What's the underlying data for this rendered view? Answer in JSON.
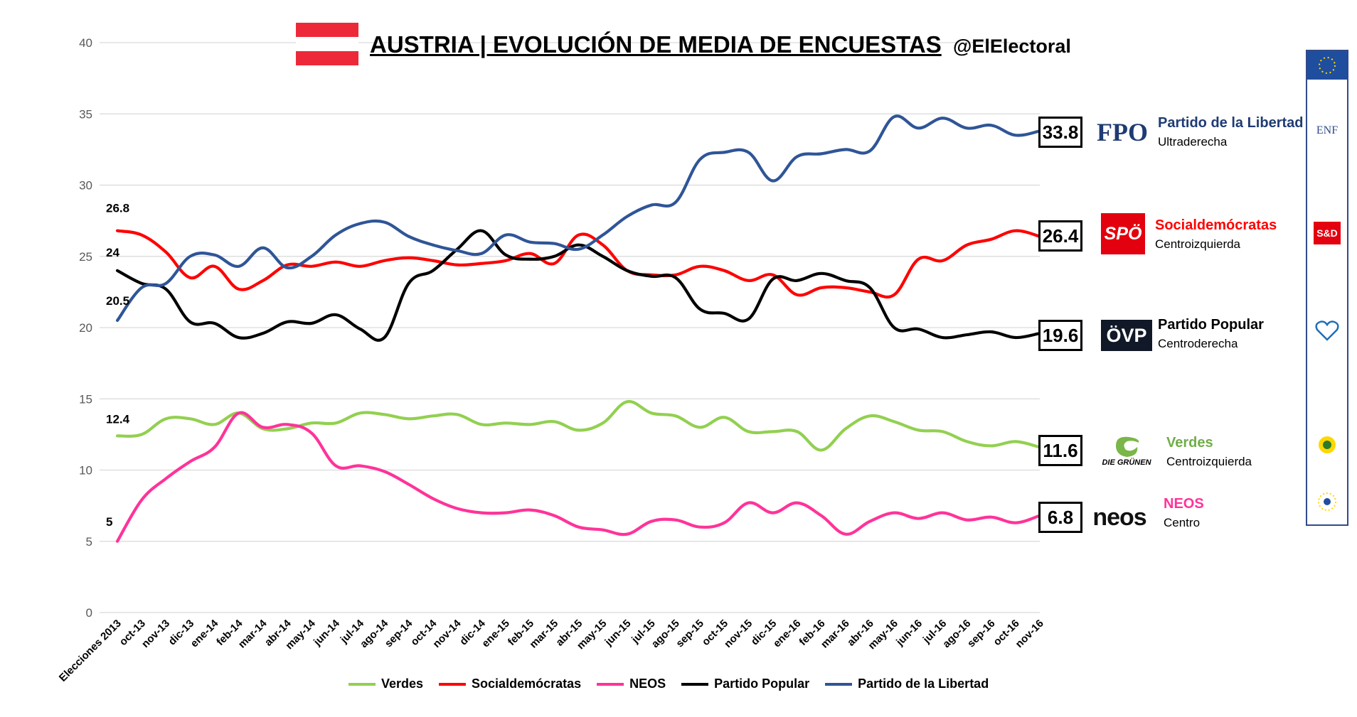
{
  "header": {
    "title": "AUSTRIA | EVOLUCIÓN DE MEDIA DE ENCUESTAS",
    "handle": "@ElElectoral",
    "flag_colors": [
      "#ED2939",
      "#FFFFFF",
      "#ED2939"
    ]
  },
  "chart_data": {
    "type": "line",
    "ylim": [
      0,
      40
    ],
    "yticks": [
      "0",
      "5",
      "10",
      "15",
      "20",
      "25",
      "30",
      "35",
      "40"
    ],
    "categories": [
      "Elecciones 2013",
      "oct-13",
      "nov-13",
      "dic-13",
      "ene-14",
      "feb-14",
      "mar-14",
      "abr-14",
      "may-14",
      "jun-14",
      "jul-14",
      "ago-14",
      "sep-14",
      "oct-14",
      "nov-14",
      "dic-14",
      "ene-15",
      "feb-15",
      "mar-15",
      "abr-15",
      "may-15",
      "jun-15",
      "jul-15",
      "ago-15",
      "sep-15",
      "oct-15",
      "nov-15",
      "dic-15",
      "ene-16",
      "feb-16",
      "mar-16",
      "abr-16",
      "may-16",
      "jun-16",
      "jul-16",
      "ago-16",
      "sep-16",
      "oct-16",
      "nov-16"
    ],
    "grid": true,
    "legend_position": "bottom",
    "series": [
      {
        "name": "Verdes",
        "color": "#92D050",
        "start_label": "12.4",
        "values": [
          12.4,
          12.5,
          13.6,
          13.6,
          13.2,
          14.0,
          12.9,
          12.9,
          13.3,
          13.3,
          14.0,
          13.9,
          13.6,
          13.8,
          13.9,
          13.2,
          13.3,
          13.2,
          13.4,
          12.8,
          13.3,
          14.8,
          14.0,
          13.8,
          13.0,
          13.7,
          12.7,
          12.7,
          12.7,
          11.4,
          12.9,
          13.8,
          13.4,
          12.8,
          12.7,
          12.0,
          11.7,
          12.0,
          11.6
        ]
      },
      {
        "name": "Socialdemócratas",
        "color": "#FF0000",
        "start_label": "26.8",
        "values": [
          26.8,
          26.5,
          25.3,
          23.5,
          24.3,
          22.7,
          23.3,
          24.4,
          24.3,
          24.6,
          24.3,
          24.7,
          24.9,
          24.7,
          24.4,
          24.5,
          24.7,
          25.2,
          24.5,
          26.5,
          25.8,
          24.0,
          23.7,
          23.7,
          24.3,
          24.0,
          23.3,
          23.7,
          22.3,
          22.8,
          22.8,
          22.5,
          22.3,
          24.8,
          24.7,
          25.8,
          26.2,
          26.8,
          26.4
        ]
      },
      {
        "name": "NEOS",
        "color": "#FF3399",
        "start_label": "5",
        "values": [
          5.0,
          7.9,
          9.4,
          10.6,
          11.6,
          14.0,
          13.0,
          13.2,
          12.6,
          10.3,
          10.3,
          9.9,
          9.0,
          8.0,
          7.3,
          7.0,
          7.0,
          7.2,
          6.8,
          6.0,
          5.8,
          5.5,
          6.4,
          6.5,
          6.0,
          6.3,
          7.7,
          7.0,
          7.7,
          6.8,
          5.5,
          6.4,
          7.0,
          6.6,
          7.0,
          6.5,
          6.7,
          6.3,
          6.8
        ]
      },
      {
        "name": "Partido Popular",
        "color": "#000000",
        "start_label": "24",
        "values": [
          24.0,
          23.1,
          22.7,
          20.4,
          20.3,
          19.3,
          19.6,
          20.4,
          20.3,
          20.9,
          19.9,
          19.3,
          23.1,
          24.0,
          25.5,
          26.8,
          25.1,
          24.8,
          25.0,
          25.8,
          25.0,
          24.0,
          23.6,
          23.5,
          21.3,
          21.0,
          20.6,
          23.4,
          23.3,
          23.8,
          23.3,
          22.8,
          20.0,
          19.9,
          19.3,
          19.5,
          19.7,
          19.3,
          19.6
        ]
      },
      {
        "name": "Partido de la Libertad",
        "color": "#2F5597",
        "start_label": "20.5",
        "values": [
          20.5,
          22.8,
          23.1,
          25.0,
          25.1,
          24.3,
          25.6,
          24.2,
          25.0,
          26.5,
          27.3,
          27.4,
          26.4,
          25.8,
          25.4,
          25.2,
          26.5,
          26.0,
          25.9,
          25.5,
          26.5,
          27.8,
          28.6,
          28.8,
          31.8,
          32.3,
          32.3,
          30.3,
          32.0,
          32.2,
          32.5,
          32.4,
          34.8,
          34.0,
          34.7,
          34.0,
          34.2,
          33.5,
          33.8
        ]
      }
    ]
  },
  "sidebar": [
    {
      "key": "fpo",
      "value": "33.8",
      "logo_text": "FPO",
      "name": "Partido de la Libertad",
      "sub": "Ultraderecha",
      "name_color": "#1F3B73"
    },
    {
      "key": "spo",
      "value": "26.4",
      "logo_text": "SPÖ",
      "name": "Socialdemócratas",
      "sub": "Centroizquierda",
      "name_color": "#FF0000"
    },
    {
      "key": "ovp",
      "value": "19.6",
      "logo_text": "ÖVP",
      "name": "Partido Popular",
      "sub": "Centroderecha",
      "name_color": "#000000"
    },
    {
      "key": "gruene",
      "value": "11.6",
      "logo_text": "DIE GRÜNEN",
      "name": "Verdes",
      "sub": "Centroizquierda",
      "name_color": "#70AD47"
    },
    {
      "key": "neos",
      "value": "6.8",
      "logo_text": "neos",
      "name": "NEOS",
      "sub": "Centro",
      "name_color": "#FF3399"
    }
  ],
  "eu_groups": [
    {
      "key": "enf",
      "text": "ENF"
    },
    {
      "key": "sd",
      "text": "S&D"
    }
  ]
}
